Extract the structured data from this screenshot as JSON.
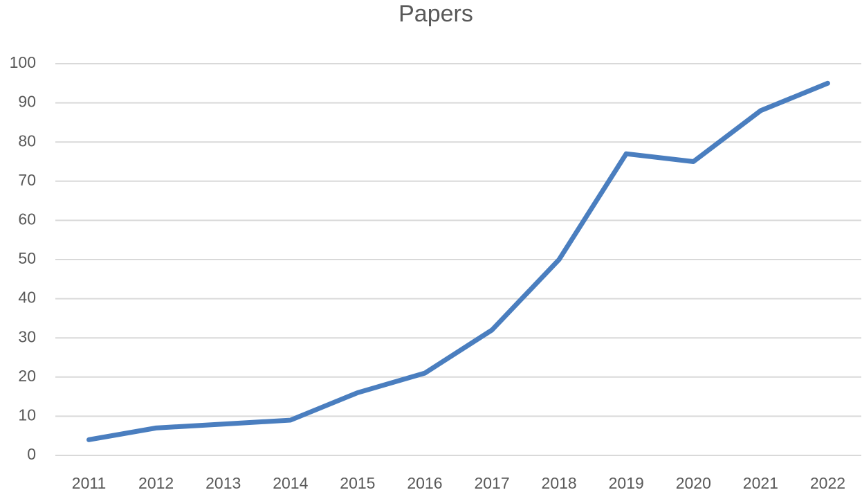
{
  "chart_data": {
    "type": "line",
    "title": "Papers",
    "categories": [
      "2011",
      "2012",
      "2013",
      "2014",
      "2015",
      "2016",
      "2017",
      "2018",
      "2019",
      "2020",
      "2021",
      "2022"
    ],
    "values": [
      4,
      7,
      8,
      9,
      16,
      21,
      32,
      50,
      77,
      75,
      88,
      95
    ],
    "color": "#4a7ebf",
    "ylim": [
      0,
      100
    ],
    "yticks": [
      0,
      10,
      20,
      30,
      40,
      50,
      60,
      70,
      80,
      90,
      100
    ],
    "grid": true
  }
}
